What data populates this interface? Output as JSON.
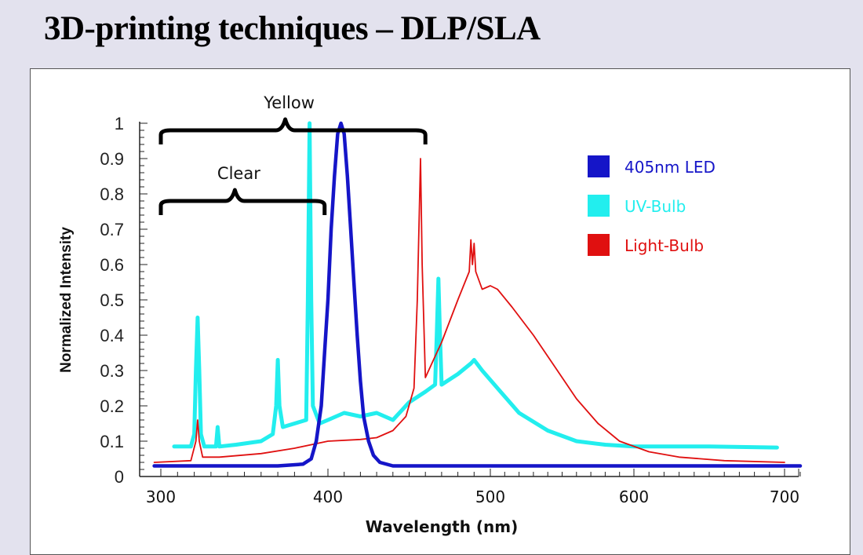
{
  "slide": {
    "title": "3D-printing techniques – DLP/SLA"
  },
  "chart_data": {
    "type": "line",
    "title": "",
    "xlabel": "Wavelength (nm)",
    "ylabel": "Normalized Intensity",
    "xlim": [
      300,
      700
    ],
    "ylim": [
      0,
      1
    ],
    "x_ticks": [
      300,
      400,
      500,
      600,
      700
    ],
    "x_tick_labels": [
      "300",
      "400",
      "500",
      "600",
      "700"
    ],
    "y_ticks": [
      0,
      0.1,
      0.2,
      0.3,
      0.4,
      0.5,
      0.6,
      0.7,
      0.8,
      0.9,
      1
    ],
    "y_tick_labels": [
      "0",
      "0.1",
      "0.2",
      "0.3",
      "0.4",
      "0.5",
      "0.6",
      "0.7",
      "0.8",
      "0.9",
      "1"
    ],
    "grid": false,
    "legend": {
      "position": "top-right"
    },
    "annotations": [
      {
        "label": "Yellow",
        "type": "brace",
        "x_range": [
          300,
          460
        ],
        "y": 0.98
      },
      {
        "label": "Clear",
        "type": "brace",
        "x_range": [
          300,
          398
        ],
        "y": 0.78
      }
    ],
    "series": [
      {
        "name": "405nm LED",
        "color": "#1515c8",
        "points": [
          [
            296,
            0.03
          ],
          [
            340,
            0.03
          ],
          [
            370,
            0.03
          ],
          [
            385,
            0.035
          ],
          [
            390,
            0.05
          ],
          [
            393,
            0.1
          ],
          [
            396,
            0.2
          ],
          [
            398,
            0.35
          ],
          [
            400,
            0.5
          ],
          [
            402,
            0.7
          ],
          [
            404,
            0.85
          ],
          [
            406,
            0.97
          ],
          [
            408,
            1.0
          ],
          [
            410,
            0.97
          ],
          [
            412,
            0.85
          ],
          [
            414,
            0.7
          ],
          [
            416,
            0.55
          ],
          [
            418,
            0.4
          ],
          [
            420,
            0.27
          ],
          [
            422,
            0.17
          ],
          [
            425,
            0.1
          ],
          [
            428,
            0.06
          ],
          [
            432,
            0.04
          ],
          [
            440,
            0.03
          ],
          [
            500,
            0.03
          ],
          [
            600,
            0.03
          ],
          [
            710,
            0.03
          ]
        ]
      },
      {
        "name": "UV-Bulb",
        "color": "#22eeee",
        "points": [
          [
            308,
            0.085
          ],
          [
            318,
            0.085
          ],
          [
            320,
            0.12
          ],
          [
            321,
            0.3
          ],
          [
            322,
            0.45
          ],
          [
            323,
            0.3
          ],
          [
            324,
            0.12
          ],
          [
            326,
            0.085
          ],
          [
            333,
            0.085
          ],
          [
            334,
            0.14
          ],
          [
            335,
            0.085
          ],
          [
            345,
            0.09
          ],
          [
            360,
            0.1
          ],
          [
            367,
            0.12
          ],
          [
            369,
            0.2
          ],
          [
            370,
            0.33
          ],
          [
            371,
            0.2
          ],
          [
            373,
            0.14
          ],
          [
            380,
            0.15
          ],
          [
            387,
            0.16
          ],
          [
            388,
            0.5
          ],
          [
            389,
            1.0
          ],
          [
            390,
            0.5
          ],
          [
            391,
            0.2
          ],
          [
            395,
            0.15
          ],
          [
            400,
            0.16
          ],
          [
            410,
            0.18
          ],
          [
            420,
            0.17
          ],
          [
            430,
            0.18
          ],
          [
            440,
            0.16
          ],
          [
            450,
            0.21
          ],
          [
            460,
            0.24
          ],
          [
            466,
            0.26
          ],
          [
            467,
            0.4
          ],
          [
            468,
            0.56
          ],
          [
            469,
            0.4
          ],
          [
            470,
            0.26
          ],
          [
            480,
            0.29
          ],
          [
            488,
            0.32
          ],
          [
            490,
            0.33
          ],
          [
            495,
            0.3
          ],
          [
            505,
            0.25
          ],
          [
            520,
            0.18
          ],
          [
            540,
            0.13
          ],
          [
            560,
            0.1
          ],
          [
            580,
            0.09
          ],
          [
            600,
            0.085
          ],
          [
            650,
            0.085
          ],
          [
            695,
            0.082
          ]
        ]
      },
      {
        "name": "Light-Bulb",
        "color": "#e01010",
        "points": [
          [
            296,
            0.04
          ],
          [
            318,
            0.045
          ],
          [
            321,
            0.1
          ],
          [
            322,
            0.16
          ],
          [
            323,
            0.1
          ],
          [
            325,
            0.055
          ],
          [
            335,
            0.055
          ],
          [
            360,
            0.065
          ],
          [
            380,
            0.08
          ],
          [
            400,
            0.1
          ],
          [
            420,
            0.105
          ],
          [
            430,
            0.11
          ],
          [
            440,
            0.13
          ],
          [
            448,
            0.17
          ],
          [
            453,
            0.25
          ],
          [
            455,
            0.5
          ],
          [
            457,
            0.9
          ],
          [
            458,
            0.6
          ],
          [
            460,
            0.28
          ],
          [
            465,
            0.33
          ],
          [
            470,
            0.38
          ],
          [
            480,
            0.5
          ],
          [
            487,
            0.58
          ],
          [
            488,
            0.67
          ],
          [
            489,
            0.6
          ],
          [
            490,
            0.66
          ],
          [
            491,
            0.58
          ],
          [
            495,
            0.53
          ],
          [
            500,
            0.54
          ],
          [
            505,
            0.53
          ],
          [
            515,
            0.48
          ],
          [
            530,
            0.4
          ],
          [
            545,
            0.31
          ],
          [
            560,
            0.22
          ],
          [
            575,
            0.15
          ],
          [
            590,
            0.1
          ],
          [
            610,
            0.07
          ],
          [
            630,
            0.055
          ],
          [
            660,
            0.045
          ],
          [
            700,
            0.04
          ]
        ]
      }
    ]
  }
}
